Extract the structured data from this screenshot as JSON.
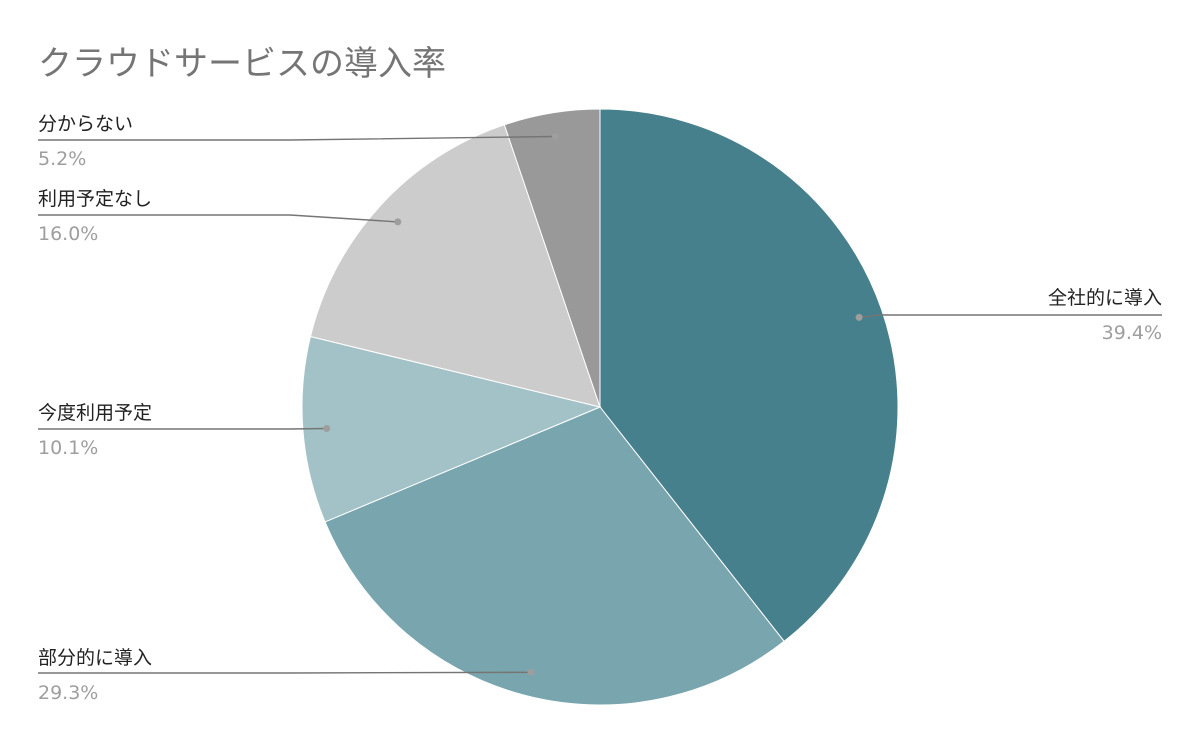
{
  "chart_data": {
    "type": "pie",
    "title": "クラウドサービスの導入率",
    "slices": [
      {
        "label": "全社的に導入",
        "value": 39.4,
        "value_label": "39.4%",
        "color": "#46808c"
      },
      {
        "label": "部分的に導入",
        "value": 29.3,
        "value_label": "29.3%",
        "color": "#78a5ae"
      },
      {
        "label": "今度利用予定",
        "value": 10.1,
        "value_label": "10.1%",
        "color": "#a3c2c7"
      },
      {
        "label": "利用予定なし",
        "value": 16.0,
        "value_label": "16.0%",
        "color": "#cccccc"
      },
      {
        "label": "分からない",
        "value": 5.2,
        "value_label": "5.2%",
        "color": "#999999"
      }
    ],
    "start_angle": "12 o'clock",
    "direction": "clockwise",
    "legend": "none"
  }
}
